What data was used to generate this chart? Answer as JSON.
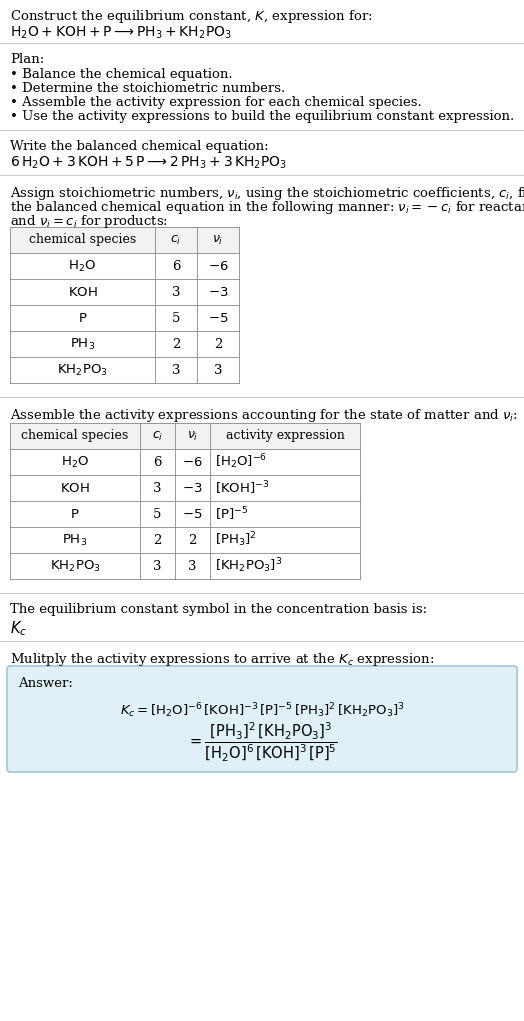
{
  "bg_color": "#ffffff",
  "title_line1": "Construct the equilibrium constant, $K$, expression for:",
  "title_line2": "$\\mathrm{H_2O + KOH + P} \\longrightarrow \\mathrm{PH_3 + KH_2PO_3}$",
  "plan_header": "Plan:",
  "plan_items": [
    "• Balance the chemical equation.",
    "• Determine the stoichiometric numbers.",
    "• Assemble the activity expression for each chemical species.",
    "• Use the activity expressions to build the equilibrium constant expression."
  ],
  "balanced_header": "Write the balanced chemical equation:",
  "balanced_eq": "$\\mathrm{6\\,H_2O + 3\\,KOH + 5\\,P} \\longrightarrow \\mathrm{2\\,PH_3 + 3\\,KH_2PO_3}$",
  "stoich_header1": "Assign stoichiometric numbers, $\\nu_i$, using the stoichiometric coefficients, $c_i$, from",
  "stoich_header2": "the balanced chemical equation in the following manner: $\\nu_i = -c_i$ for reactants",
  "stoich_header3": "and $\\nu_i = c_i$ for products:",
  "table1_headers": [
    "chemical species",
    "$c_i$",
    "$\\nu_i$"
  ],
  "table1_rows": [
    [
      "$\\mathrm{H_2O}$",
      "6",
      "$-6$"
    ],
    [
      "$\\mathrm{KOH}$",
      "3",
      "$-3$"
    ],
    [
      "$\\mathrm{P}$",
      "5",
      "$-5$"
    ],
    [
      "$\\mathrm{PH_3}$",
      "2",
      "2"
    ],
    [
      "$\\mathrm{KH_2PO_3}$",
      "3",
      "3"
    ]
  ],
  "activity_header": "Assemble the activity expressions accounting for the state of matter and $\\nu_i$:",
  "table2_headers": [
    "chemical species",
    "$c_i$",
    "$\\nu_i$",
    "activity expression"
  ],
  "table2_rows": [
    [
      "$\\mathrm{H_2O}$",
      "6",
      "$-6$",
      "$[\\mathrm{H_2O}]^{-6}$"
    ],
    [
      "$\\mathrm{KOH}$",
      "3",
      "$-3$",
      "$[\\mathrm{KOH}]^{-3}$"
    ],
    [
      "$\\mathrm{P}$",
      "5",
      "$-5$",
      "$[\\mathrm{P}]^{-5}$"
    ],
    [
      "$\\mathrm{PH_3}$",
      "2",
      "2",
      "$[\\mathrm{PH_3}]^{2}$"
    ],
    [
      "$\\mathrm{KH_2PO_3}$",
      "3",
      "3",
      "$[\\mathrm{KH_2PO_3}]^{3}$"
    ]
  ],
  "kc_header": "The equilibrium constant symbol in the concentration basis is:",
  "kc_symbol": "$K_c$",
  "multiply_header": "Mulitply the activity expressions to arrive at the $K_c$ expression:",
  "answer_label": "Answer:",
  "answer_line": "$K_c = [\\mathrm{H_2O}]^{-6}\\,[\\mathrm{KOH}]^{-3}\\,[\\mathrm{P}]^{-5}\\,[\\mathrm{PH_3}]^{2}\\,[\\mathrm{KH_2PO_3}]^{3} = \\dfrac{[\\mathrm{PH_3}]^{2}\\,[\\mathrm{KH_2PO_3}]^{3}}{[\\mathrm{H_2O}]^{6}\\,[\\mathrm{KOH}]^{3}\\,[\\mathrm{P}]^{5}}$",
  "answer_box_color": "#dff0f7",
  "answer_box_border": "#9fc8d8",
  "table_border_color": "#888888",
  "table_header_bg": "#f2f2f2",
  "separator_color": "#cccccc",
  "text_color": "#000000",
  "font_size": 9.5
}
